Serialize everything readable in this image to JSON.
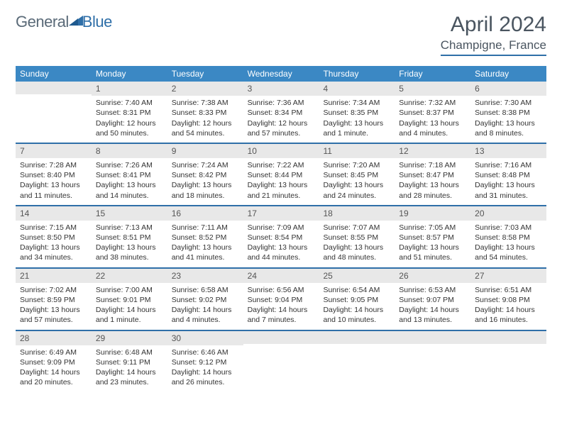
{
  "logo": {
    "part1": "General",
    "part2": "Blue"
  },
  "title": "April 2024",
  "location": "Champigne, France",
  "colors": {
    "header_bg": "#3b88c4",
    "accent": "#2f6fa8",
    "daynum_bg": "#e8e8e8",
    "text": "#333333",
    "title_text": "#4a5560"
  },
  "day_names": [
    "Sunday",
    "Monday",
    "Tuesday",
    "Wednesday",
    "Thursday",
    "Friday",
    "Saturday"
  ],
  "weeks": [
    [
      {
        "n": "",
        "sr": "",
        "ss": "",
        "dl": ""
      },
      {
        "n": "1",
        "sr": "Sunrise: 7:40 AM",
        "ss": "Sunset: 8:31 PM",
        "dl": "Daylight: 12 hours and 50 minutes."
      },
      {
        "n": "2",
        "sr": "Sunrise: 7:38 AM",
        "ss": "Sunset: 8:33 PM",
        "dl": "Daylight: 12 hours and 54 minutes."
      },
      {
        "n": "3",
        "sr": "Sunrise: 7:36 AM",
        "ss": "Sunset: 8:34 PM",
        "dl": "Daylight: 12 hours and 57 minutes."
      },
      {
        "n": "4",
        "sr": "Sunrise: 7:34 AM",
        "ss": "Sunset: 8:35 PM",
        "dl": "Daylight: 13 hours and 1 minute."
      },
      {
        "n": "5",
        "sr": "Sunrise: 7:32 AM",
        "ss": "Sunset: 8:37 PM",
        "dl": "Daylight: 13 hours and 4 minutes."
      },
      {
        "n": "6",
        "sr": "Sunrise: 7:30 AM",
        "ss": "Sunset: 8:38 PM",
        "dl": "Daylight: 13 hours and 8 minutes."
      }
    ],
    [
      {
        "n": "7",
        "sr": "Sunrise: 7:28 AM",
        "ss": "Sunset: 8:40 PM",
        "dl": "Daylight: 13 hours and 11 minutes."
      },
      {
        "n": "8",
        "sr": "Sunrise: 7:26 AM",
        "ss": "Sunset: 8:41 PM",
        "dl": "Daylight: 13 hours and 14 minutes."
      },
      {
        "n": "9",
        "sr": "Sunrise: 7:24 AM",
        "ss": "Sunset: 8:42 PM",
        "dl": "Daylight: 13 hours and 18 minutes."
      },
      {
        "n": "10",
        "sr": "Sunrise: 7:22 AM",
        "ss": "Sunset: 8:44 PM",
        "dl": "Daylight: 13 hours and 21 minutes."
      },
      {
        "n": "11",
        "sr": "Sunrise: 7:20 AM",
        "ss": "Sunset: 8:45 PM",
        "dl": "Daylight: 13 hours and 24 minutes."
      },
      {
        "n": "12",
        "sr": "Sunrise: 7:18 AM",
        "ss": "Sunset: 8:47 PM",
        "dl": "Daylight: 13 hours and 28 minutes."
      },
      {
        "n": "13",
        "sr": "Sunrise: 7:16 AM",
        "ss": "Sunset: 8:48 PM",
        "dl": "Daylight: 13 hours and 31 minutes."
      }
    ],
    [
      {
        "n": "14",
        "sr": "Sunrise: 7:15 AM",
        "ss": "Sunset: 8:50 PM",
        "dl": "Daylight: 13 hours and 34 minutes."
      },
      {
        "n": "15",
        "sr": "Sunrise: 7:13 AM",
        "ss": "Sunset: 8:51 PM",
        "dl": "Daylight: 13 hours and 38 minutes."
      },
      {
        "n": "16",
        "sr": "Sunrise: 7:11 AM",
        "ss": "Sunset: 8:52 PM",
        "dl": "Daylight: 13 hours and 41 minutes."
      },
      {
        "n": "17",
        "sr": "Sunrise: 7:09 AM",
        "ss": "Sunset: 8:54 PM",
        "dl": "Daylight: 13 hours and 44 minutes."
      },
      {
        "n": "18",
        "sr": "Sunrise: 7:07 AM",
        "ss": "Sunset: 8:55 PM",
        "dl": "Daylight: 13 hours and 48 minutes."
      },
      {
        "n": "19",
        "sr": "Sunrise: 7:05 AM",
        "ss": "Sunset: 8:57 PM",
        "dl": "Daylight: 13 hours and 51 minutes."
      },
      {
        "n": "20",
        "sr": "Sunrise: 7:03 AM",
        "ss": "Sunset: 8:58 PM",
        "dl": "Daylight: 13 hours and 54 minutes."
      }
    ],
    [
      {
        "n": "21",
        "sr": "Sunrise: 7:02 AM",
        "ss": "Sunset: 8:59 PM",
        "dl": "Daylight: 13 hours and 57 minutes."
      },
      {
        "n": "22",
        "sr": "Sunrise: 7:00 AM",
        "ss": "Sunset: 9:01 PM",
        "dl": "Daylight: 14 hours and 1 minute."
      },
      {
        "n": "23",
        "sr": "Sunrise: 6:58 AM",
        "ss": "Sunset: 9:02 PM",
        "dl": "Daylight: 14 hours and 4 minutes."
      },
      {
        "n": "24",
        "sr": "Sunrise: 6:56 AM",
        "ss": "Sunset: 9:04 PM",
        "dl": "Daylight: 14 hours and 7 minutes."
      },
      {
        "n": "25",
        "sr": "Sunrise: 6:54 AM",
        "ss": "Sunset: 9:05 PM",
        "dl": "Daylight: 14 hours and 10 minutes."
      },
      {
        "n": "26",
        "sr": "Sunrise: 6:53 AM",
        "ss": "Sunset: 9:07 PM",
        "dl": "Daylight: 14 hours and 13 minutes."
      },
      {
        "n": "27",
        "sr": "Sunrise: 6:51 AM",
        "ss": "Sunset: 9:08 PM",
        "dl": "Daylight: 14 hours and 16 minutes."
      }
    ],
    [
      {
        "n": "28",
        "sr": "Sunrise: 6:49 AM",
        "ss": "Sunset: 9:09 PM",
        "dl": "Daylight: 14 hours and 20 minutes."
      },
      {
        "n": "29",
        "sr": "Sunrise: 6:48 AM",
        "ss": "Sunset: 9:11 PM",
        "dl": "Daylight: 14 hours and 23 minutes."
      },
      {
        "n": "30",
        "sr": "Sunrise: 6:46 AM",
        "ss": "Sunset: 9:12 PM",
        "dl": "Daylight: 14 hours and 26 minutes."
      },
      {
        "n": "",
        "sr": "",
        "ss": "",
        "dl": ""
      },
      {
        "n": "",
        "sr": "",
        "ss": "",
        "dl": ""
      },
      {
        "n": "",
        "sr": "",
        "ss": "",
        "dl": ""
      },
      {
        "n": "",
        "sr": "",
        "ss": "",
        "dl": ""
      }
    ]
  ]
}
